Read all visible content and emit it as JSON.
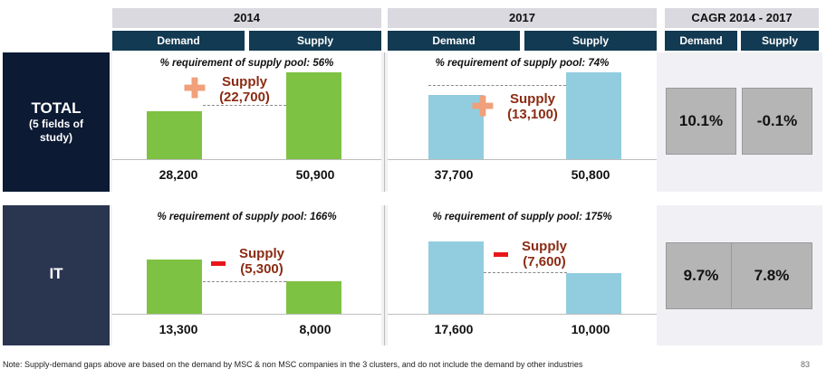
{
  "headers": {
    "year_2014": "2014",
    "year_2017": "2017",
    "cagr": "CAGR 2014 - 2017",
    "demand": "Demand",
    "supply": "Supply"
  },
  "rows": {
    "total": {
      "label_main": "TOTAL",
      "label_sub": "(5 fields of study)",
      "pct_2014": "% requirement of supply pool: 56%",
      "pct_2017": "% requirement of supply pool: 74%",
      "gap_2014_title": "Supply",
      "gap_2014_value": "(22,700)",
      "gap_2017_title": "Supply",
      "gap_2017_value": "(13,100)",
      "demand_2014": "28,200",
      "supply_2014": "50,900",
      "demand_2017": "37,700",
      "supply_2017": "50,800",
      "cagr_demand": "10.1%",
      "cagr_supply": "-0.1%"
    },
    "it": {
      "label_main": "IT",
      "pct_2014": "% requirement of supply pool: 166%",
      "pct_2017": "% requirement of supply pool: 175%",
      "gap_2014_title": "Supply",
      "gap_2014_value": "(5,300)",
      "gap_2017_title": "Supply",
      "gap_2017_value": "(7,600)",
      "demand_2014": "13,300",
      "supply_2014": "8,000",
      "demand_2017": "17,600",
      "supply_2017": "10,000",
      "cagr_demand": "9.7%",
      "cagr_supply": "7.8%"
    }
  },
  "note": "Note: Supply-demand gaps above are based on the demand by MSC & non MSC companies in the 3 clusters, and do not include the demand by other industries",
  "page_number": "83",
  "colors": {
    "bar_2014": "#7dc242",
    "bar_2017": "#92cddf",
    "header_dark": "#123a52",
    "gap_text": "#8b2c14"
  },
  "chart_data": [
    {
      "type": "bar",
      "categories": [
        "2014 Demand",
        "2014 Supply",
        "2017 Demand",
        "2017 Supply"
      ],
      "values": [
        28200,
        50900,
        37700,
        50800
      ],
      "cagr": {
        "demand": "10.1%",
        "supply": "-0.1%"
      }
    },
    {
      "type": "bar",
      "categories": [
        "2014 Demand",
        "2014 Supply",
        "2017 Demand",
        "2017 Supply"
      ],
      "values": [
        13300,
        8000,
        17600,
        10000
      ],
      "cagr": {
        "demand": "9.7%",
        "supply": "7.8%"
      }
    }
  ]
}
